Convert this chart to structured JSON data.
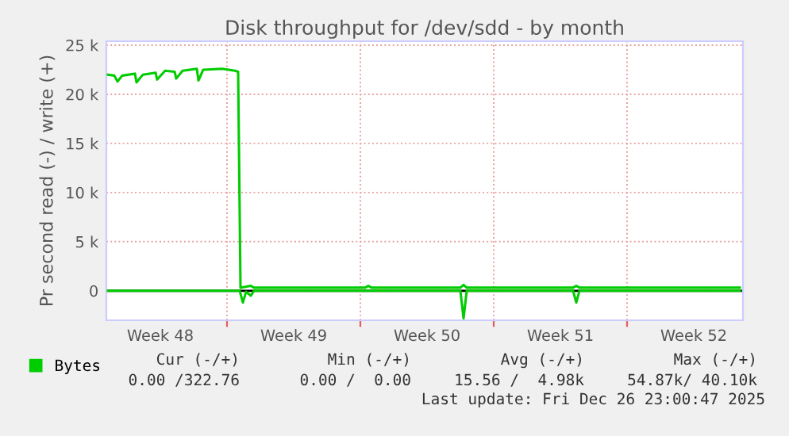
{
  "chart_data": {
    "type": "line",
    "title": "Disk throughput for /dev/sdd - by month",
    "ylabel": "Pr second read (-) / write (+)",
    "xlim": [
      "2025-11-24T16:00",
      "2025-12-28T02:00"
    ],
    "xticks": [
      {
        "value": "2025-11-27T12:00",
        "label": "Week 48"
      },
      {
        "value": "2025-12-01",
        "label": null
      },
      {
        "value": "2025-12-04T12:00",
        "label": "Week 49"
      },
      {
        "value": "2025-12-08",
        "label": null
      },
      {
        "value": "2025-12-11T12:00",
        "label": "Week 50"
      },
      {
        "value": "2025-12-15",
        "label": null
      },
      {
        "value": "2025-12-18T12:00",
        "label": "Week 51"
      },
      {
        "value": "2025-12-22",
        "label": null
      },
      {
        "value": "2025-12-25T12:00",
        "label": "Week 52"
      }
    ],
    "ylim": [
      -3000,
      25400
    ],
    "yticks": [
      0,
      {
        "value": 5000,
        "label": "5 k"
      },
      {
        "value": 10000,
        "label": "10 k"
      },
      {
        "value": 15000,
        "label": "15 k"
      },
      {
        "value": 20000,
        "label": "20 k"
      },
      {
        "value": 25000,
        "label": "25 k"
      }
    ],
    "grid": true,
    "legend": "bottom left",
    "series": [
      {
        "name": "Bytes",
        "color": "#00cc00",
        "x": [
          "2025-11-24T18:00",
          "2025-11-25T02:00",
          "2025-11-25T06:00",
          "2025-11-25T12:00",
          "2025-11-26T04:00",
          "2025-11-26T06:00",
          "2025-11-26T14:00",
          "2025-11-27T06:00",
          "2025-11-27T08:00",
          "2025-11-27T18:00",
          "2025-11-28T06:00",
          "2025-11-28T08:00",
          "2025-11-28T16:00",
          "2025-11-29T10:00",
          "2025-11-29T12:00",
          "2025-11-29T18:00",
          "2025-11-30T18:00",
          "2025-12-01T10:00",
          "2025-12-01T14:00",
          "2025-12-01T17:00",
          "2025-12-02T06:00",
          "2025-12-02T10:00",
          "2025-12-08T06:00",
          "2025-12-08T10:00",
          "2025-12-08T14:00",
          "2025-12-13T06:00",
          "2025-12-13T10:00",
          "2025-12-13T14:00",
          "2025-12-19T04:00",
          "2025-12-19T08:00",
          "2025-12-19T12:00",
          "2025-12-27T22:00"
        ],
        "values": [
          22000,
          21900,
          21300,
          21900,
          22100,
          21200,
          22000,
          22200,
          21500,
          22400,
          22300,
          21600,
          22400,
          22600,
          21400,
          22500,
          22600,
          22400,
          22300,
          300,
          500,
          320,
          320,
          500,
          320,
          320,
          600,
          320,
          320,
          500,
          320,
          320
        ]
      },
      {
        "color": "#00cc00",
        "x": [
          "2025-11-24T18:00",
          "2025-12-01T16:00",
          "2025-12-01T20:00",
          "2025-12-02T00:00",
          "2025-12-02T06:00",
          "2025-12-02T10:00",
          "2025-12-13T06:00",
          "2025-12-13T10:00",
          "2025-12-13T14:00",
          "2025-12-19T04:00",
          "2025-12-19T08:00",
          "2025-12-19T12:00",
          "2025-12-27T22:00"
        ],
        "values": [
          0,
          0,
          -1200,
          -100,
          -500,
          0,
          0,
          -2800,
          0,
          0,
          -1200,
          0,
          0
        ]
      }
    ],
    "ref_lines": [
      {
        "axis": "y",
        "value": 0,
        "color": "#000000"
      }
    ],
    "annotations": [
      "Cur (-/+)",
      "Min (-/+)",
      "Avg (-/+)",
      "Max (-/+)",
      "0.00 /322.76",
      "0.00 /  0.00",
      "15.56 /  4.98k",
      "54.87k/ 40.10k",
      "Last update: Fri Dec 26 23:00:47 2025"
    ]
  }
}
